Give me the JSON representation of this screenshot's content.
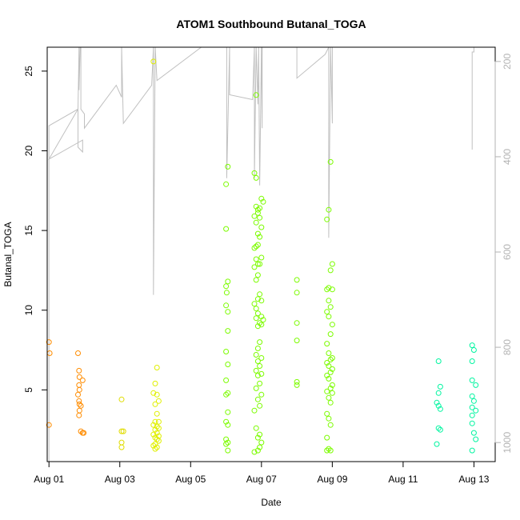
{
  "chart_data": {
    "type": "scatter",
    "title": "ATOM1 Southbound Butanal_TOGA",
    "xlabel": "Date",
    "ylabel": "Butanal_TOGA",
    "xlim": [
      -0.05,
      12.6
    ],
    "ylim": [
      0.5,
      26.5
    ],
    "x_ticks": [
      {
        "value": 0,
        "label": "Aug 01"
      },
      {
        "value": 2,
        "label": "Aug 03"
      },
      {
        "value": 4,
        "label": "Aug 05"
      },
      {
        "value": 6,
        "label": "Aug 07"
      },
      {
        "value": 8,
        "label": "Aug 09"
      },
      {
        "value": 10,
        "label": "Aug 11"
      },
      {
        "value": 12,
        "label": "Aug 13"
      }
    ],
    "y_ticks": [
      5,
      10,
      15,
      20,
      25
    ],
    "secondary_axis": {
      "side": "right",
      "color": "#b3b3b3",
      "reversed": true,
      "lim": [
        1040,
        170
      ],
      "ticks": [
        200,
        400,
        600,
        800,
        1000
      ]
    },
    "profile_line": {
      "color": "#c0c0c0",
      "points": [
        [
          0.0,
          1040
        ],
        [
          0.0,
          405
        ],
        [
          0.0,
          335
        ],
        [
          0.82,
          300
        ],
        [
          0.82,
          380
        ],
        [
          0.95,
          390
        ],
        [
          0.95,
          365
        ],
        [
          0.0,
          405
        ],
        [
          0.82,
          300
        ],
        [
          0.85,
          170
        ],
        [
          0.85,
          260
        ],
        [
          0.88,
          170
        ],
        [
          0.9,
          170
        ],
        [
          0.9,
          300
        ],
        [
          1.0,
          310
        ],
        [
          1.0,
          340
        ],
        [
          1.9,
          250
        ],
        [
          2.05,
          275
        ],
        [
          2.05,
          170
        ],
        [
          2.1,
          330
        ],
        [
          2.9,
          250
        ],
        [
          2.95,
          170
        ],
        [
          2.95,
          690
        ],
        [
          3.0,
          170
        ],
        [
          3.05,
          240
        ],
        [
          4.3,
          170
        ],
        [
          5.02,
          170
        ],
        [
          5.02,
          445
        ],
        [
          5.1,
          170
        ],
        [
          5.1,
          270
        ],
        [
          5.75,
          280
        ],
        [
          5.8,
          170
        ],
        [
          5.8,
          445
        ],
        [
          5.85,
          170
        ],
        [
          5.9,
          290
        ],
        [
          5.92,
          170
        ],
        [
          5.95,
          460
        ],
        [
          6.0,
          170
        ],
        [
          6.02,
          340
        ],
        [
          6.02,
          170
        ],
        [
          7.0,
          170
        ],
        [
          7.0,
          235
        ],
        [
          7.8,
          185
        ],
        [
          7.9,
          170
        ],
        [
          7.9,
          570
        ],
        [
          7.95,
          170
        ],
        [
          8.0,
          330
        ],
        [
          8.0,
          170
        ],
        [
          12.0,
          170
        ],
        [
          12.0,
          180
        ],
        [
          11.95,
          180
        ],
        [
          11.95,
          385
        ]
      ]
    },
    "series": [
      {
        "color": "#ff8c00",
        "points": [
          [
            0.0,
            8.0
          ],
          [
            0.02,
            7.3
          ],
          [
            0.0,
            2.8
          ],
          [
            0.82,
            7.3
          ],
          [
            0.85,
            6.2
          ],
          [
            0.86,
            5.8
          ],
          [
            0.85,
            5.3
          ],
          [
            0.95,
            5.6
          ],
          [
            0.86,
            5.0
          ],
          [
            0.82,
            4.7
          ],
          [
            0.85,
            4.3
          ],
          [
            0.86,
            4.1
          ],
          [
            0.9,
            4.0
          ],
          [
            0.86,
            3.7
          ],
          [
            0.85,
            3.4
          ],
          [
            0.9,
            2.4
          ],
          [
            0.95,
            2.3
          ],
          [
            0.98,
            2.3
          ]
        ]
      },
      {
        "color": "#e0dc00",
        "points": [
          [
            2.05,
            4.4
          ],
          [
            2.1,
            2.4
          ],
          [
            2.05,
            2.4
          ],
          [
            2.05,
            1.7
          ],
          [
            2.05,
            1.4
          ]
        ]
      },
      {
        "color": "#e0f000",
        "points": [
          [
            2.95,
            25.6
          ],
          [
            3.05,
            6.4
          ],
          [
            3.0,
            5.4
          ],
          [
            3.05,
            4.7
          ],
          [
            2.95,
            4.8
          ],
          [
            3.1,
            4.3
          ],
          [
            3.0,
            4.1
          ],
          [
            3.05,
            3.5
          ],
          [
            3.1,
            3.0
          ],
          [
            3.0,
            3.0
          ],
          [
            2.95,
            2.8
          ],
          [
            3.05,
            2.7
          ],
          [
            3.1,
            2.6
          ],
          [
            3.0,
            2.5
          ],
          [
            3.05,
            2.3
          ],
          [
            2.95,
            2.2
          ],
          [
            3.1,
            2.1
          ],
          [
            3.0,
            2.0
          ],
          [
            3.05,
            1.9
          ],
          [
            3.1,
            1.8
          ],
          [
            3.0,
            1.6
          ],
          [
            2.95,
            1.5
          ],
          [
            3.05,
            1.4
          ],
          [
            3.0,
            1.3
          ]
        ]
      },
      {
        "color": "#7cfc00",
        "points": [
          [
            5.05,
            19.0
          ],
          [
            5.0,
            17.9
          ],
          [
            5.0,
            15.1
          ],
          [
            5.05,
            11.8
          ],
          [
            5.0,
            11.5
          ],
          [
            5.02,
            11.1
          ],
          [
            5.0,
            10.3
          ],
          [
            5.05,
            9.9
          ],
          [
            5.05,
            8.7
          ],
          [
            5.0,
            7.4
          ],
          [
            5.05,
            6.6
          ],
          [
            5.0,
            5.6
          ],
          [
            5.05,
            4.8
          ],
          [
            5.0,
            4.7
          ],
          [
            5.05,
            3.6
          ],
          [
            5.0,
            3.0
          ],
          [
            5.05,
            2.8
          ],
          [
            5.0,
            1.9
          ],
          [
            5.05,
            1.7
          ],
          [
            5.0,
            1.6
          ],
          [
            5.05,
            1.2
          ],
          [
            5.85,
            23.5
          ],
          [
            5.8,
            18.6
          ],
          [
            5.85,
            18.3
          ],
          [
            6.0,
            17.0
          ],
          [
            6.05,
            16.8
          ],
          [
            5.85,
            16.5
          ],
          [
            5.9,
            16.3
          ],
          [
            5.95,
            16.4
          ],
          [
            5.9,
            16.1
          ],
          [
            5.95,
            15.8
          ],
          [
            5.8,
            15.9
          ],
          [
            5.85,
            15.5
          ],
          [
            6.0,
            15.2
          ],
          [
            5.9,
            14.8
          ],
          [
            5.95,
            14.6
          ],
          [
            5.85,
            14.0
          ],
          [
            5.9,
            14.1
          ],
          [
            5.8,
            13.9
          ],
          [
            6.0,
            13.3
          ],
          [
            5.85,
            13.2
          ],
          [
            5.9,
            12.9
          ],
          [
            5.8,
            12.7
          ],
          [
            5.95,
            12.9
          ],
          [
            5.9,
            12.2
          ],
          [
            5.85,
            11.9
          ],
          [
            5.95,
            11.0
          ],
          [
            5.9,
            10.7
          ],
          [
            6.0,
            10.6
          ],
          [
            5.8,
            10.4
          ],
          [
            5.85,
            10.1
          ],
          [
            5.9,
            9.8
          ],
          [
            6.0,
            9.6
          ],
          [
            6.05,
            9.4
          ],
          [
            5.95,
            9.2
          ],
          [
            5.9,
            9.0
          ],
          [
            5.85,
            9.5
          ],
          [
            6.0,
            9.1
          ],
          [
            5.95,
            8.0
          ],
          [
            5.9,
            7.6
          ],
          [
            5.85,
            7.2
          ],
          [
            6.0,
            7.0
          ],
          [
            5.9,
            6.8
          ],
          [
            5.95,
            6.5
          ],
          [
            5.85,
            6.2
          ],
          [
            6.0,
            6.0
          ],
          [
            5.9,
            5.9
          ],
          [
            5.95,
            5.4
          ],
          [
            5.85,
            5.1
          ],
          [
            6.0,
            4.7
          ],
          [
            5.9,
            4.4
          ],
          [
            5.95,
            4.0
          ],
          [
            5.8,
            3.7
          ],
          [
            5.85,
            2.6
          ],
          [
            5.95,
            2.2
          ],
          [
            5.9,
            2.0
          ],
          [
            6.0,
            1.7
          ],
          [
            5.95,
            1.4
          ],
          [
            5.9,
            1.2
          ],
          [
            5.8,
            1.1
          ],
          [
            7.0,
            11.9
          ],
          [
            7.0,
            11.1
          ],
          [
            7.0,
            9.2
          ],
          [
            7.0,
            8.1
          ],
          [
            7.0,
            5.5
          ],
          [
            7.0,
            5.3
          ],
          [
            7.95,
            19.3
          ],
          [
            7.9,
            16.3
          ],
          [
            7.85,
            15.7
          ],
          [
            8.0,
            12.9
          ],
          [
            7.95,
            12.5
          ],
          [
            7.9,
            11.4
          ],
          [
            7.85,
            11.3
          ],
          [
            8.0,
            11.3
          ],
          [
            7.9,
            10.6
          ],
          [
            7.95,
            10.2
          ],
          [
            7.85,
            9.9
          ],
          [
            7.9,
            9.6
          ],
          [
            8.0,
            9.1
          ],
          [
            7.95,
            8.5
          ],
          [
            7.85,
            7.9
          ],
          [
            7.9,
            7.3
          ],
          [
            8.0,
            7.0
          ],
          [
            7.95,
            6.9
          ],
          [
            7.85,
            6.7
          ],
          [
            7.9,
            6.5
          ],
          [
            8.0,
            6.3
          ],
          [
            7.95,
            6.1
          ],
          [
            7.85,
            5.9
          ],
          [
            7.9,
            5.7
          ],
          [
            8.0,
            5.3
          ],
          [
            7.95,
            5.1
          ],
          [
            7.85,
            4.9
          ],
          [
            8.0,
            4.8
          ],
          [
            7.9,
            4.5
          ],
          [
            7.95,
            4.2
          ],
          [
            7.85,
            3.5
          ],
          [
            7.9,
            3.2
          ],
          [
            7.95,
            2.8
          ],
          [
            7.85,
            2.0
          ],
          [
            7.9,
            1.3
          ],
          [
            7.85,
            1.2
          ],
          [
            7.95,
            1.2
          ]
        ]
      },
      {
        "color": "#00f5a0",
        "points": [
          [
            11.95,
            7.8
          ],
          [
            12.0,
            7.5
          ],
          [
            11.95,
            6.8
          ],
          [
            11.95,
            5.6
          ],
          [
            12.05,
            5.3
          ],
          [
            11.95,
            4.6
          ],
          [
            12.0,
            4.3
          ],
          [
            11.95,
            3.9
          ],
          [
            12.05,
            3.7
          ],
          [
            11.95,
            3.4
          ],
          [
            11.95,
            2.9
          ],
          [
            12.0,
            2.3
          ],
          [
            12.05,
            1.9
          ],
          [
            11.95,
            1.2
          ],
          [
            11.0,
            6.8
          ],
          [
            11.05,
            5.2
          ],
          [
            11.0,
            4.8
          ],
          [
            10.95,
            4.2
          ],
          [
            11.0,
            4.0
          ],
          [
            11.05,
            3.8
          ],
          [
            11.0,
            2.6
          ],
          [
            11.05,
            2.5
          ],
          [
            10.95,
            1.6
          ]
        ]
      }
    ]
  }
}
